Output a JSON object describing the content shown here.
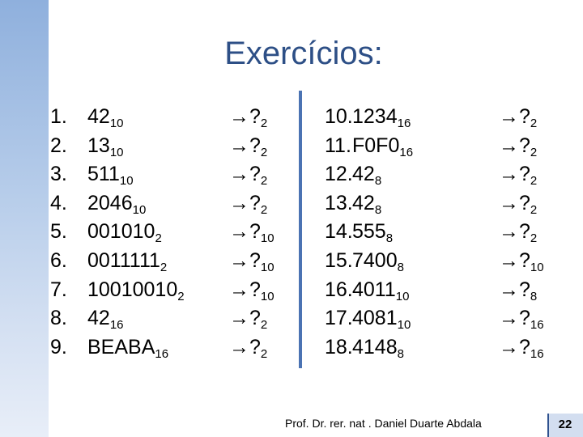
{
  "title": "Exercícios:",
  "left_items": [
    {
      "num": "1.",
      "value": "42",
      "base": "10",
      "arrow": "→?",
      "target": "2"
    },
    {
      "num": "2.",
      "value": "13",
      "base": "10",
      "arrow": "→?",
      "target": "2"
    },
    {
      "num": "3.",
      "value": "511",
      "base": "10",
      "arrow": "→?",
      "target": "2"
    },
    {
      "num": "4.",
      "value": "2046",
      "base": "10",
      "arrow": "→?",
      "target": "2"
    },
    {
      "num": "5.",
      "value": "001010",
      "base": "2",
      "arrow": "→?",
      "target": "10"
    },
    {
      "num": "6.",
      "value": "0011111",
      "base": "2",
      "arrow": "→?",
      "target": "10"
    },
    {
      "num": "7.",
      "value": "10010010",
      "base": "2",
      "arrow": "→?",
      "target": "10"
    },
    {
      "num": "8.",
      "value": "42",
      "base": "16",
      "arrow": "→?",
      "target": "2"
    },
    {
      "num": "9.",
      "value": "BEABA",
      "base": "16",
      "arrow": "→?",
      "target": "2"
    }
  ],
  "right_items": [
    {
      "num": "10.",
      "value": "1234",
      "base": "16",
      "arrow": "→?",
      "target": "2"
    },
    {
      "num": "11.",
      "value": "F0F0",
      "base": "16",
      "arrow": "→?",
      "target": "2"
    },
    {
      "num": "12.",
      "value": "42",
      "base": "8",
      "arrow": "→?",
      "target": "2"
    },
    {
      "num": "13.",
      "value": "42",
      "base": "8",
      "arrow": "→?",
      "target": "2"
    },
    {
      "num": "14.",
      "value": "555",
      "base": "8",
      "arrow": "→?",
      "target": "2"
    },
    {
      "num": "15.",
      "value": "7400",
      "base": "8",
      "arrow": "→?",
      "target": "10"
    },
    {
      "num": "16.",
      "value": "4011",
      "base": "10",
      "arrow": "→?",
      "target": "8"
    },
    {
      "num": "17.",
      "value": "4081",
      "base": "10",
      "arrow": "→?",
      "target": "16"
    },
    {
      "num": "18.",
      "value": "4148",
      "base": "8",
      "arrow": "→?",
      "target": "16"
    }
  ],
  "footer": "Prof. Dr. rer. nat . Daniel Duarte Abdala",
  "page_number": "22",
  "colors": {
    "title": "#2d4f86",
    "divider": "#4b73b3",
    "left_bar": "#8fb0dd"
  }
}
